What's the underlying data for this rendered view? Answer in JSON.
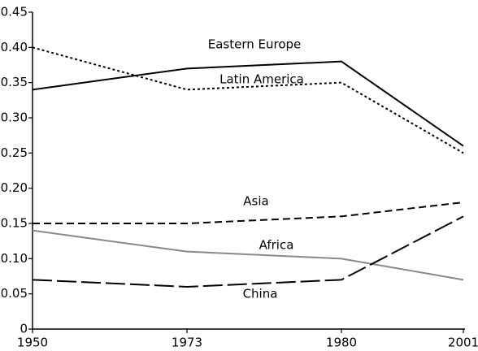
{
  "chart_data": {
    "type": "line",
    "categories": [
      "1950",
      "1973",
      "1980",
      "2001"
    ],
    "series": [
      {
        "name": "Eastern Europe",
        "color": "#000000",
        "dash": "solid",
        "values": [
          0.34,
          0.37,
          0.38,
          0.26
        ]
      },
      {
        "name": "Latin America",
        "color": "#000000",
        "dash": "dotted",
        "values": [
          0.4,
          0.34,
          0.35,
          0.25
        ]
      },
      {
        "name": "Asia",
        "color": "#000000",
        "dash": "dashed",
        "values": [
          0.15,
          0.15,
          0.16,
          0.18
        ]
      },
      {
        "name": "Africa",
        "color": "#888888",
        "dash": "solid",
        "values": [
          0.14,
          0.11,
          0.1,
          0.07
        ]
      },
      {
        "name": "China",
        "color": "#000000",
        "dash": "longdash",
        "values": [
          0.07,
          0.06,
          0.07,
          0.16
        ]
      }
    ],
    "ylim": [
      0,
      0.45
    ],
    "yticks": [
      0,
      0.05,
      {
        "value": 0.1,
        "label": "0.10"
      },
      0.15,
      {
        "value": 0.2,
        "label": "0.20"
      },
      0.25,
      {
        "value": 0.3,
        "label": "0.30"
      },
      0.35,
      {
        "value": 0.4,
        "label": "0.40"
      },
      0.45
    ]
  }
}
